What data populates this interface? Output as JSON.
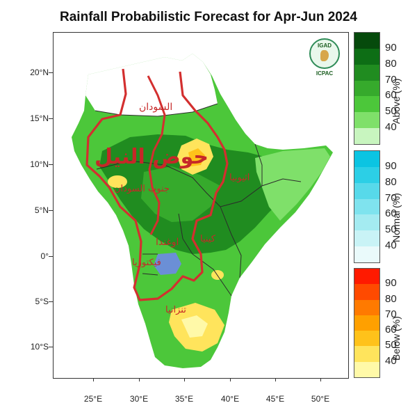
{
  "title": "Rainfall Probabilistic Forecast for Apr-Jun 2024",
  "lat_labels": [
    "20°N",
    "15°N",
    "10°N",
    "5°N",
    "0°",
    "5°S",
    "10°S"
  ],
  "lon_labels": [
    "25°E",
    "30°E",
    "35°E",
    "40°E",
    "45°E",
    "50°E"
  ],
  "colorbars": [
    {
      "label": "Above (%)",
      "ticks": [
        "40",
        "50",
        "60",
        "70",
        "80",
        "90"
      ],
      "colors": [
        "#c8f5bf",
        "#7fe06a",
        "#4cc73a",
        "#36aa2c",
        "#208c20",
        "#0d6e15",
        "#064a0c"
      ]
    },
    {
      "label": "Normal (%)",
      "ticks": [
        "40",
        "50",
        "60",
        "70",
        "80",
        "90"
      ],
      "colors": [
        "#eafafb",
        "#c9f3f6",
        "#a4ebf1",
        "#7fe3ee",
        "#57d9ea",
        "#2ccfe6",
        "#0bc4e2"
      ]
    },
    {
      "label": "Below (%)",
      "ticks": [
        "40",
        "50",
        "60",
        "70",
        "80",
        "90"
      ],
      "colors": [
        "#fff9a8",
        "#ffe45c",
        "#ffc21a",
        "#ffa000",
        "#ff7a00",
        "#ff4a00",
        "#ff1a00"
      ]
    }
  ],
  "logo": {
    "top_text": "IGAD",
    "bottom_text": "ICPAC"
  },
  "arabic_labels": {
    "sudan": "السودان",
    "nile_basin": "حوض النيل",
    "south_sudan": "جنوب السودان",
    "ethiopia": "اثيوبيا",
    "uganda": "اوغندا",
    "kenya": "كينيا",
    "victoria": "فيكتوريا",
    "tanzania": "تنزانيا"
  },
  "colors": {
    "nile_basin_outline": "#d32f2f",
    "map_label": "#c62828"
  }
}
